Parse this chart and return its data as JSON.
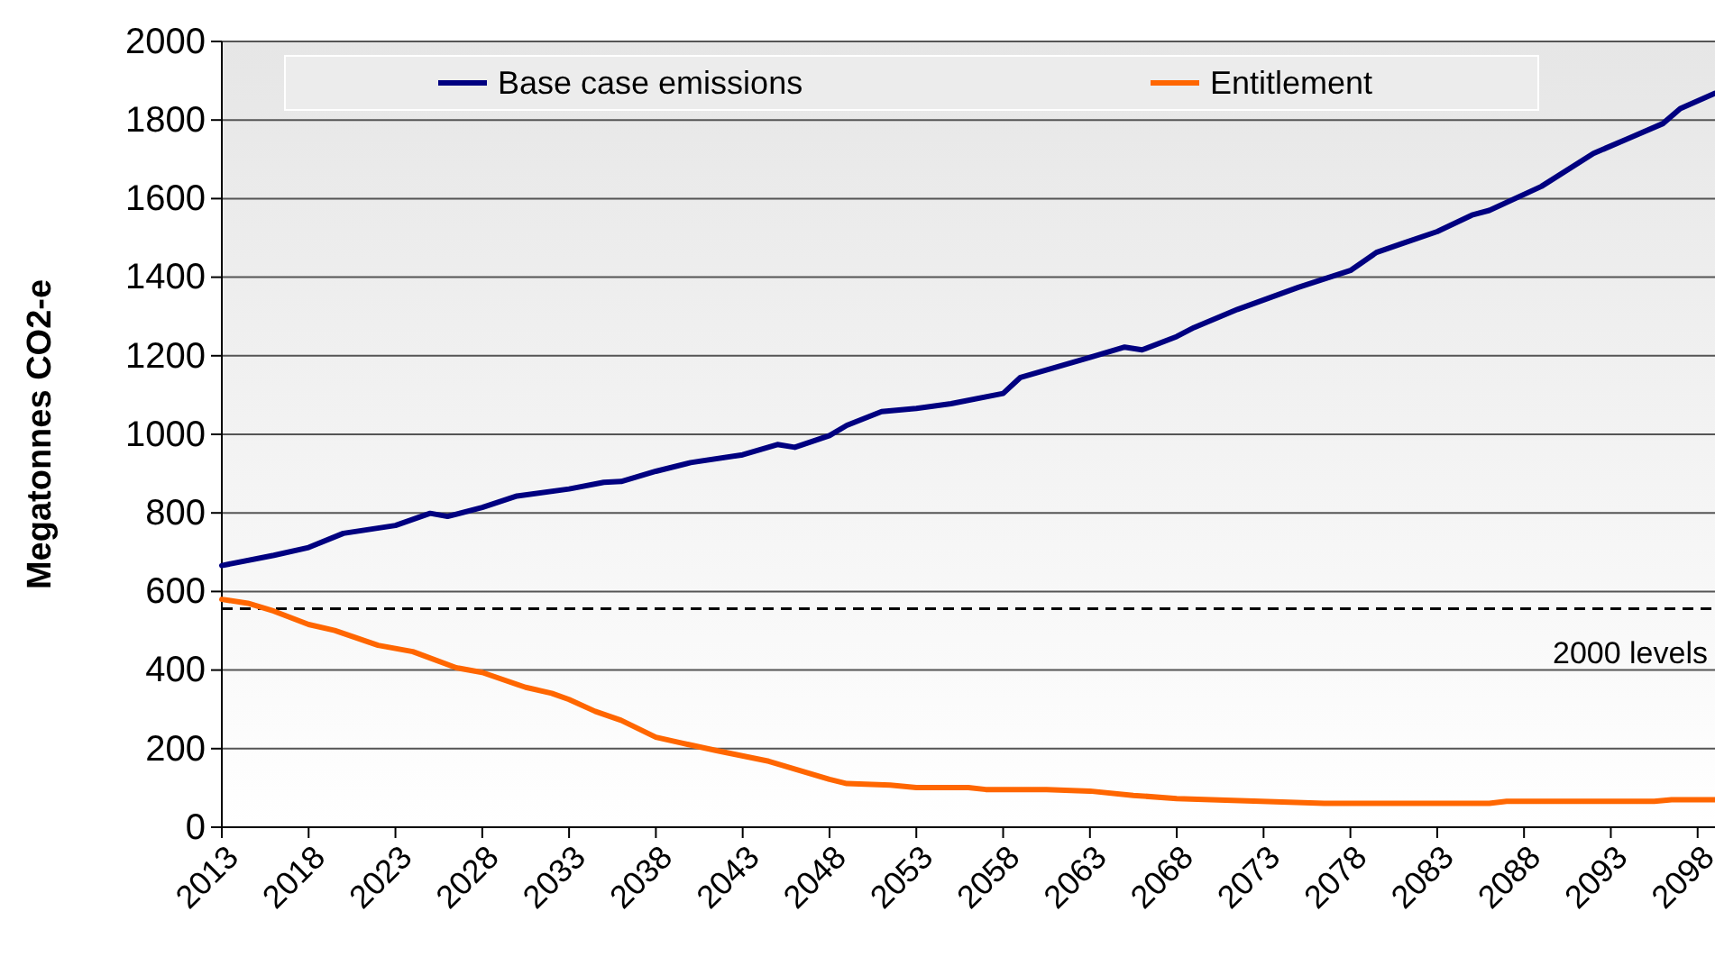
{
  "chart_data": {
    "type": "line",
    "ylabel": "Megatonnes CO2-e",
    "xlim": [
      2013,
      2099
    ],
    "xticks": [
      2013,
      2018,
      2023,
      2028,
      2033,
      2038,
      2043,
      2048,
      2053,
      2058,
      2063,
      2068,
      2073,
      2078,
      2083,
      2088,
      2093,
      2098
    ],
    "ylim": [
      0,
      2000
    ],
    "yticks": [
      0,
      200,
      400,
      600,
      800,
      1000,
      1200,
      1400,
      1600,
      1800,
      2000
    ],
    "grid": "y",
    "legend": "top",
    "line_style": "solid",
    "marker": "none",
    "series": [
      {
        "name": "Base case emissions",
        "color": "#000080",
        "x": [
          2013,
          2016,
          2018,
          2020,
          2023,
          2025,
          2026,
          2028,
          2030,
          2033,
          2035,
          2036,
          2038,
          2040,
          2043,
          2045,
          2046,
          2048,
          2049,
          2051,
          2053,
          2055,
          2058,
          2059,
          2063,
          2065,
          2066,
          2068,
          2069,
          2071.5,
          2075,
          2078,
          2079.5,
          2081,
          2083,
          2085,
          2086,
          2089,
          2092,
          2094,
          2096,
          2097,
          2099
        ],
        "values": [
          666,
          692,
          712,
          748,
          768,
          799,
          791,
          814,
          843,
          861,
          878,
          880,
          906,
          928,
          948,
          974,
          967,
          997,
          1023,
          1058,
          1066,
          1078,
          1104,
          1145,
          1196,
          1222,
          1215,
          1249,
          1272,
          1318,
          1374,
          1417,
          1463,
          1486,
          1516,
          1558,
          1570,
          1631,
          1715,
          1753,
          1791,
          1829,
          1868
        ]
      },
      {
        "name": "Entitlement",
        "color": "#ff6600",
        "x": [
          2013,
          2014.5,
          2016,
          2018,
          2019.5,
          2022,
          2024,
          2026.5,
          2028,
          2030.5,
          2032,
          2033,
          2034.5,
          2036,
          2038,
          2039.5,
          2041.5,
          2044.5,
          2048,
          2049,
          2051.5,
          2053,
          2056,
          2057,
          2060.5,
          2063,
          2065.5,
          2068,
          2070,
          2076.5,
          2086,
          2087,
          2095.5,
          2096.5,
          2099
        ],
        "values": [
          580,
          570,
          550,
          516,
          501,
          463,
          447,
          406,
          394,
          356,
          341,
          325,
          295,
          272,
          229,
          214,
          195,
          168,
          122,
          111,
          107,
          101,
          101,
          96,
          96,
          92,
          81,
          73,
          70,
          61,
          61,
          66,
          66,
          70,
          70
        ]
      }
    ],
    "ref_lines": [
      {
        "axis": "y",
        "value": 556,
        "label": "2000 levels",
        "color": "#000000",
        "line_style": "dashed"
      }
    ]
  }
}
